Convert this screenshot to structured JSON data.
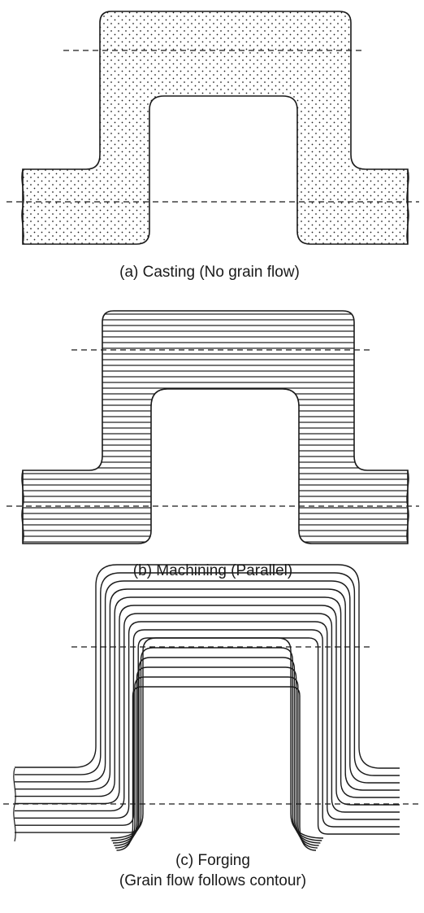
{
  "panels": [
    {
      "id": "casting",
      "caption": "(a) Casting (No grain flow)",
      "pattern": "dots"
    },
    {
      "id": "machining",
      "caption": "(b) Machining (Parallel)",
      "pattern": "parallel-lines"
    },
    {
      "id": "forging",
      "caption": [
        "(c) Forging",
        "(Grain flow follows contour)"
      ],
      "pattern": "contour-lines"
    }
  ],
  "colors": {
    "ink": "#1a1a1a",
    "background": "#ffffff"
  }
}
